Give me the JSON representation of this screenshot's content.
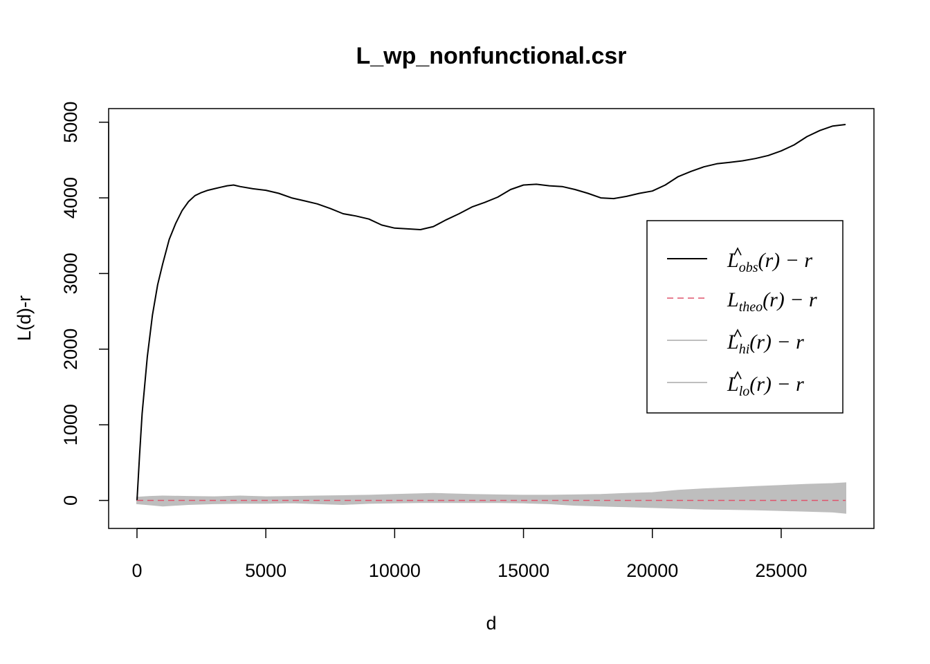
{
  "chart_data": {
    "type": "line",
    "title": "L_wp_nonfunctional.csr",
    "xlabel": "d",
    "ylabel": "L(d)-r",
    "xlim": [
      -1100,
      28600
    ],
    "ylim": [
      -370,
      5180
    ],
    "xticks": [
      0,
      5000,
      10000,
      15000,
      20000,
      25000
    ],
    "yticks": [
      0,
      1000,
      2000,
      3000,
      4000,
      5000
    ],
    "grid": false,
    "legend_position": "right-middle",
    "legend": [
      {
        "id": "obs",
        "base": "L",
        "hat": true,
        "sub": "obs",
        "suffix": "(r) − r",
        "color": "#000000",
        "dash": "none"
      },
      {
        "id": "theo",
        "base": "L",
        "hat": false,
        "sub": "theo",
        "suffix": "(r) − r",
        "color": "#DF536B",
        "dash": "dashed"
      },
      {
        "id": "hi",
        "base": "L",
        "hat": true,
        "sub": "hi",
        "suffix": "(r) − r",
        "color": "#BEBEBE",
        "dash": "none"
      },
      {
        "id": "lo",
        "base": "L",
        "hat": true,
        "sub": "lo",
        "suffix": "(r) − r",
        "color": "#BEBEBE",
        "dash": "none"
      }
    ],
    "series": [
      {
        "id": "obs",
        "color": "#000000",
        "x": [
          0,
          100,
          200,
          400,
          600,
          800,
          1000,
          1250,
          1500,
          1750,
          2000,
          2250,
          2500,
          2750,
          3000,
          3250,
          3500,
          3750,
          4000,
          4500,
          5000,
          5500,
          6000,
          6500,
          7000,
          7500,
          8000,
          8500,
          9000,
          9500,
          10000,
          10500,
          11000,
          11500,
          12000,
          12500,
          13000,
          13500,
          14000,
          14500,
          15000,
          15500,
          16000,
          16500,
          17000,
          17500,
          18000,
          18500,
          19000,
          19500,
          20000,
          20500,
          21000,
          21500,
          22000,
          22500,
          23000,
          23500,
          24000,
          24500,
          25000,
          25500,
          26000,
          26500,
          27000,
          27500
        ],
        "y": [
          0,
          600,
          1150,
          1900,
          2450,
          2850,
          3130,
          3450,
          3660,
          3830,
          3950,
          4030,
          4070,
          4100,
          4120,
          4140,
          4160,
          4170,
          4150,
          4120,
          4100,
          4060,
          4000,
          3960,
          3920,
          3860,
          3790,
          3760,
          3720,
          3640,
          3600,
          3590,
          3580,
          3620,
          3710,
          3790,
          3880,
          3940,
          4010,
          4110,
          4170,
          4180,
          4160,
          4150,
          4110,
          4060,
          4000,
          3990,
          4020,
          4060,
          4090,
          4170,
          4280,
          4350,
          4410,
          4450,
          4470,
          4490,
          4520,
          4560,
          4620,
          4700,
          4810,
          4890,
          4950,
          4970
        ]
      },
      {
        "id": "theo",
        "color": "#DF536B",
        "dash": "dashed",
        "x": [
          0,
          27500
        ],
        "y": [
          0,
          0
        ]
      }
    ],
    "envelope": {
      "color": "#BEBEBE",
      "x": [
        0,
        500,
        1000,
        2000,
        3000,
        4000,
        5000,
        6000,
        7000,
        8000,
        9000,
        10000,
        11000,
        11500,
        12000,
        13000,
        14000,
        15000,
        16000,
        17000,
        18000,
        19000,
        20000,
        21000,
        22000,
        23000,
        24000,
        25000,
        26000,
        27000,
        27500
      ],
      "hi": [
        40,
        50,
        55,
        50,
        45,
        55,
        45,
        50,
        55,
        60,
        65,
        75,
        85,
        90,
        85,
        75,
        70,
        65,
        65,
        70,
        75,
        90,
        100,
        130,
        150,
        165,
        180,
        195,
        210,
        220,
        230
      ],
      "lo": [
        -40,
        -55,
        -70,
        -50,
        -40,
        -35,
        -35,
        -30,
        -40,
        -50,
        -35,
        -30,
        -25,
        -25,
        -25,
        -25,
        -25,
        -30,
        -40,
        -60,
        -70,
        -80,
        -90,
        -100,
        -110,
        -115,
        -120,
        -130,
        -140,
        -150,
        -165
      ]
    }
  }
}
